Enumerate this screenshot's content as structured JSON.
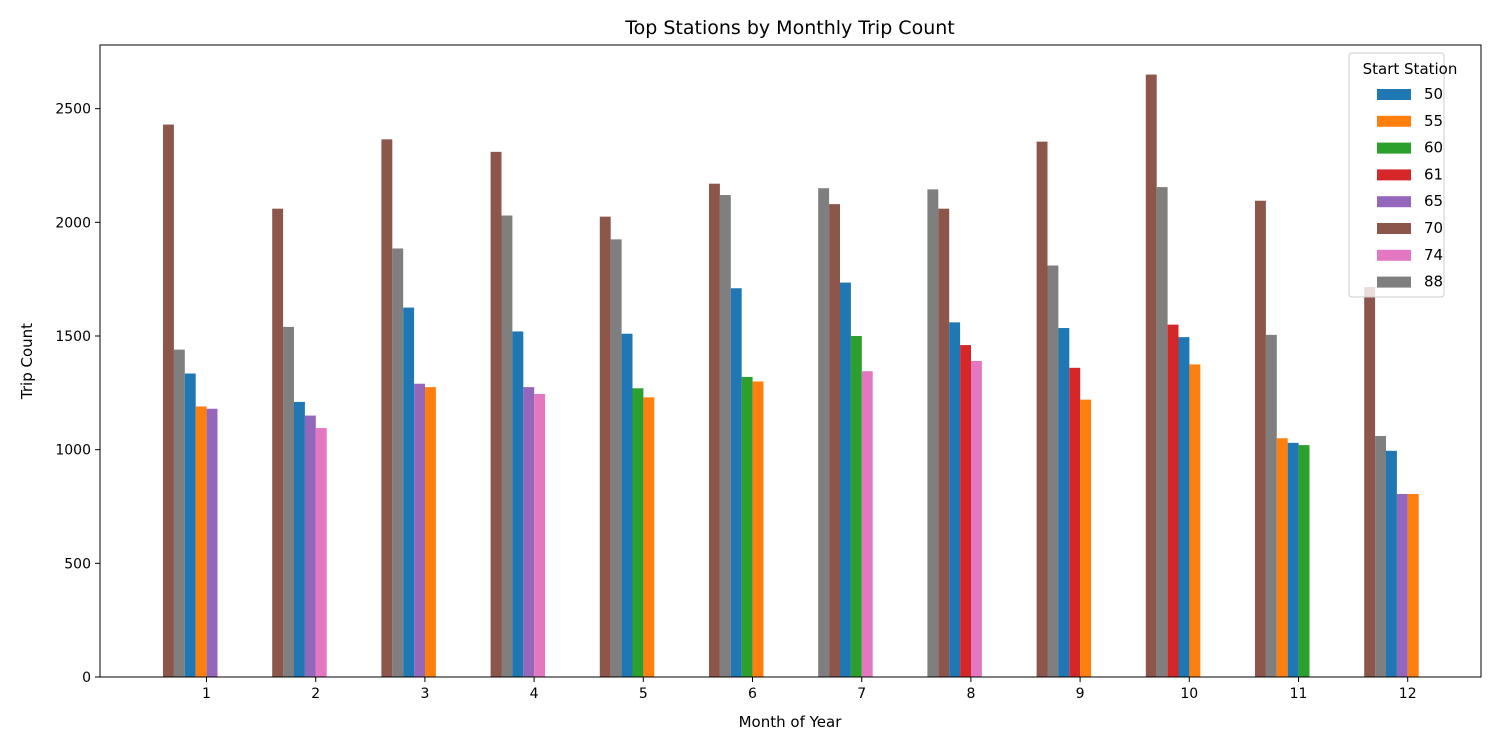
{
  "chart_data": {
    "type": "bar",
    "title": "Top Stations by Monthly Trip Count",
    "xlabel": "Month of Year",
    "ylabel": "Trip Count",
    "ylim": [
      0,
      2780
    ],
    "yticks": [
      0,
      500,
      1000,
      1500,
      2000,
      2500
    ],
    "categories": [
      "1",
      "2",
      "3",
      "4",
      "5",
      "6",
      "7",
      "8",
      "9",
      "10",
      "11",
      "12"
    ],
    "legend": {
      "title": "Start Station",
      "placement": "upper right"
    },
    "series_order": [
      "50",
      "55",
      "60",
      "61",
      "65",
      "70",
      "74",
      "88"
    ],
    "colors": {
      "50": "#1f77b4",
      "55": "#ff7f0e",
      "60": "#2ca02c",
      "61": "#d62728",
      "65": "#9467bd",
      "70": "#8c564b",
      "74": "#e377c2",
      "88": "#7f7f7f"
    },
    "groups": [
      {
        "month": "1",
        "bars": [
          {
            "station": "70",
            "value": 2430
          },
          {
            "station": "88",
            "value": 1440
          },
          {
            "station": "50",
            "value": 1335
          },
          {
            "station": "55",
            "value": 1190
          },
          {
            "station": "65",
            "value": 1180
          }
        ]
      },
      {
        "month": "2",
        "bars": [
          {
            "station": "70",
            "value": 2060
          },
          {
            "station": "88",
            "value": 1540
          },
          {
            "station": "50",
            "value": 1210
          },
          {
            "station": "65",
            "value": 1150
          },
          {
            "station": "74",
            "value": 1095
          }
        ]
      },
      {
        "month": "3",
        "bars": [
          {
            "station": "70",
            "value": 2365
          },
          {
            "station": "88",
            "value": 1885
          },
          {
            "station": "50",
            "value": 1625
          },
          {
            "station": "65",
            "value": 1290
          },
          {
            "station": "55",
            "value": 1275
          }
        ]
      },
      {
        "month": "4",
        "bars": [
          {
            "station": "70",
            "value": 2310
          },
          {
            "station": "88",
            "value": 2030
          },
          {
            "station": "50",
            "value": 1520
          },
          {
            "station": "65",
            "value": 1275
          },
          {
            "station": "74",
            "value": 1245
          }
        ]
      },
      {
        "month": "5",
        "bars": [
          {
            "station": "70",
            "value": 2025
          },
          {
            "station": "88",
            "value": 1925
          },
          {
            "station": "50",
            "value": 1510
          },
          {
            "station": "60",
            "value": 1270
          },
          {
            "station": "55",
            "value": 1230
          }
        ]
      },
      {
        "month": "6",
        "bars": [
          {
            "station": "70",
            "value": 2170
          },
          {
            "station": "88",
            "value": 2120
          },
          {
            "station": "50",
            "value": 1710
          },
          {
            "station": "60",
            "value": 1320
          },
          {
            "station": "55",
            "value": 1300
          }
        ]
      },
      {
        "month": "7",
        "bars": [
          {
            "station": "88",
            "value": 2150
          },
          {
            "station": "70",
            "value": 2080
          },
          {
            "station": "50",
            "value": 1735
          },
          {
            "station": "60",
            "value": 1500
          },
          {
            "station": "74",
            "value": 1345
          }
        ]
      },
      {
        "month": "8",
        "bars": [
          {
            "station": "88",
            "value": 2145
          },
          {
            "station": "70",
            "value": 2060
          },
          {
            "station": "50",
            "value": 1560
          },
          {
            "station": "61",
            "value": 1460
          },
          {
            "station": "74",
            "value": 1390
          }
        ]
      },
      {
        "month": "9",
        "bars": [
          {
            "station": "70",
            "value": 2355
          },
          {
            "station": "88",
            "value": 1810
          },
          {
            "station": "50",
            "value": 1535
          },
          {
            "station": "61",
            "value": 1360
          },
          {
            "station": "55",
            "value": 1220
          }
        ]
      },
      {
        "month": "10",
        "bars": [
          {
            "station": "70",
            "value": 2650
          },
          {
            "station": "88",
            "value": 2155
          },
          {
            "station": "61",
            "value": 1550
          },
          {
            "station": "50",
            "value": 1495
          },
          {
            "station": "55",
            "value": 1375
          }
        ]
      },
      {
        "month": "11",
        "bars": [
          {
            "station": "70",
            "value": 2095
          },
          {
            "station": "88",
            "value": 1505
          },
          {
            "station": "55",
            "value": 1050
          },
          {
            "station": "50",
            "value": 1030
          },
          {
            "station": "60",
            "value": 1020
          }
        ]
      },
      {
        "month": "12",
        "bars": [
          {
            "station": "70",
            "value": 1715
          },
          {
            "station": "88",
            "value": 1060
          },
          {
            "station": "50",
            "value": 995
          },
          {
            "station": "65",
            "value": 805
          },
          {
            "station": "55",
            "value": 805
          }
        ]
      }
    ]
  }
}
